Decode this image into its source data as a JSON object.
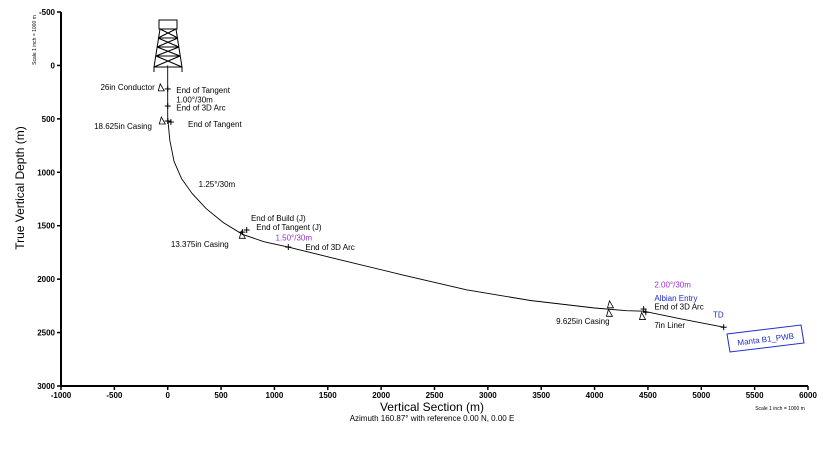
{
  "chart_data": {
    "type": "line",
    "xlabel": "Vertical Section (m)",
    "ylabel": "True Vertical Depth (m)",
    "subtitle": "Azimuth 160.87° with reference 0.00 N, 0.00 E",
    "scale_left": "Scale 1 inch = 1000 m",
    "scale_bottom": "Scale 1 inch = 1000 m",
    "xlim": [
      -1000,
      6000
    ],
    "ylim": [
      3000,
      -500
    ],
    "xticks": [
      -1000,
      -500,
      0,
      500,
      1000,
      1500,
      2000,
      2500,
      3000,
      3500,
      4000,
      4500,
      5000,
      5500,
      6000
    ],
    "yticks": [
      -500,
      0,
      500,
      1000,
      1500,
      2000,
      2500,
      3000
    ],
    "grid": false,
    "series": [
      {
        "x": [
          0,
          0,
          0,
          5,
          20,
          60,
          130,
          230,
          360,
          520,
          700,
          900,
          1130,
          1600,
          2200,
          2800,
          3400,
          4000,
          4300,
          4460,
          4800,
          5210
        ],
        "y": [
          0,
          200,
          480,
          540,
          700,
          900,
          1060,
          1200,
          1340,
          1470,
          1580,
          1650,
          1700,
          1815,
          1960,
          2100,
          2200,
          2270,
          2295,
          2300,
          2370,
          2450
        ]
      }
    ],
    "markers": [
      {
        "x": 0,
        "y": 220
      },
      {
        "x": 0,
        "y": 380
      },
      {
        "x": 0,
        "y": 520
      },
      {
        "x": 30,
        "y": 530
      },
      {
        "x": 700,
        "y": 1560
      },
      {
        "x": 740,
        "y": 1540
      },
      {
        "x": 1130,
        "y": 1700
      },
      {
        "x": 4460,
        "y": 2280
      },
      {
        "x": 4480,
        "y": 2310
      },
      {
        "x": 5210,
        "y": 2450
      }
    ],
    "casing_shoes": [
      {
        "x": -70,
        "y": 210
      },
      {
        "x": -60,
        "y": 520
      },
      {
        "x": 690,
        "y": 1590
      },
      {
        "x": 4140,
        "y": 2240
      },
      {
        "x": 4130,
        "y": 2320
      },
      {
        "x": 4440,
        "y": 2350
      }
    ],
    "annotations": [
      {
        "text": "26in Conductor",
        "x": -630,
        "y": 200,
        "color": "black"
      },
      {
        "text": "End of Tangent",
        "x": 80,
        "y": 230,
        "color": "black"
      },
      {
        "text": "1.00°/30m",
        "x": 80,
        "y": 320,
        "color": "black"
      },
      {
        "text": "End of 3D Arc",
        "x": 80,
        "y": 395,
        "color": "black"
      },
      {
        "text": "18.625in Casing",
        "x": -690,
        "y": 565,
        "color": "black"
      },
      {
        "text": "End of Tangent",
        "x": 190,
        "y": 550,
        "color": "black"
      },
      {
        "text": "1.25°/30m",
        "x": 290,
        "y": 1110,
        "color": "black"
      },
      {
        "text": "End of Build (J)",
        "x": 780,
        "y": 1430,
        "color": "black"
      },
      {
        "text": "End of Tangent (J)",
        "x": 830,
        "y": 1510,
        "color": "black"
      },
      {
        "text": "1.50°/30m",
        "x": 1010,
        "y": 1610,
        "color": "purple"
      },
      {
        "text": "End of 3D Arc",
        "x": 1290,
        "y": 1700,
        "color": "black"
      },
      {
        "text": "13.375in Casing",
        "x": 30,
        "y": 1670,
        "color": "black"
      },
      {
        "text": "2.00°/30m",
        "x": 4560,
        "y": 2050,
        "color": "purple"
      },
      {
        "text": "Albian Entry",
        "x": 4560,
        "y": 2175,
        "color": "blue"
      },
      {
        "text": "End of 3D Arc",
        "x": 4560,
        "y": 2255,
        "color": "black"
      },
      {
        "text": "9.625in Casing",
        "x": 3640,
        "y": 2390,
        "color": "black"
      },
      {
        "text": "7in Liner",
        "x": 4560,
        "y": 2430,
        "color": "black"
      },
      {
        "text": "TD",
        "x": 5110,
        "y": 2330,
        "color": "blue"
      }
    ],
    "well_label": "Manta B1_PWB"
  }
}
